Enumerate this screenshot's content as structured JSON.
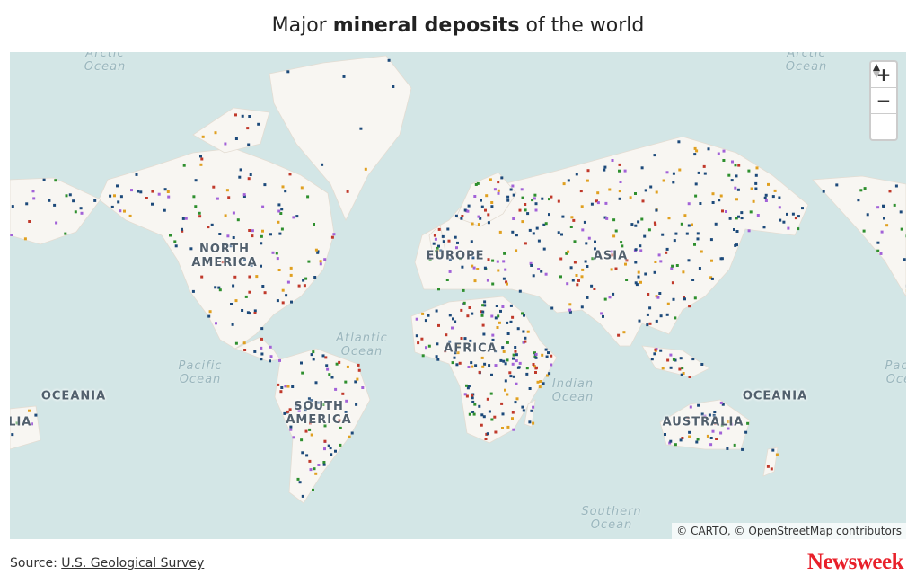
{
  "title": {
    "prefix": "Major",
    "bold": "mineral deposits",
    "suffix": "of the world"
  },
  "map": {
    "region_labels": [
      "NORTH AMERICA",
      "EUROPE",
      "ASIA",
      "AFRICA",
      "SOUTH AMERICA",
      "AUSTRALIA",
      "AUSTRALIA",
      "OCEANIA",
      "OCEANIA",
      "ASIA"
    ],
    "ocean_labels": [
      "Arctic Ocean",
      "Arctic Ocean",
      "Atlantic Ocean",
      "Pacific Ocean",
      "Pacific Ocean",
      "Indian Ocean",
      "Southern Ocean"
    ],
    "controls": {
      "zoom_in": "+",
      "zoom_out": "−"
    },
    "attribution": "© CARTO, © OpenStreetMap contributors"
  },
  "footer": {
    "source_label": "Source:",
    "source_link": "U.S. Geological Survey",
    "logo": "Newsweek"
  }
}
